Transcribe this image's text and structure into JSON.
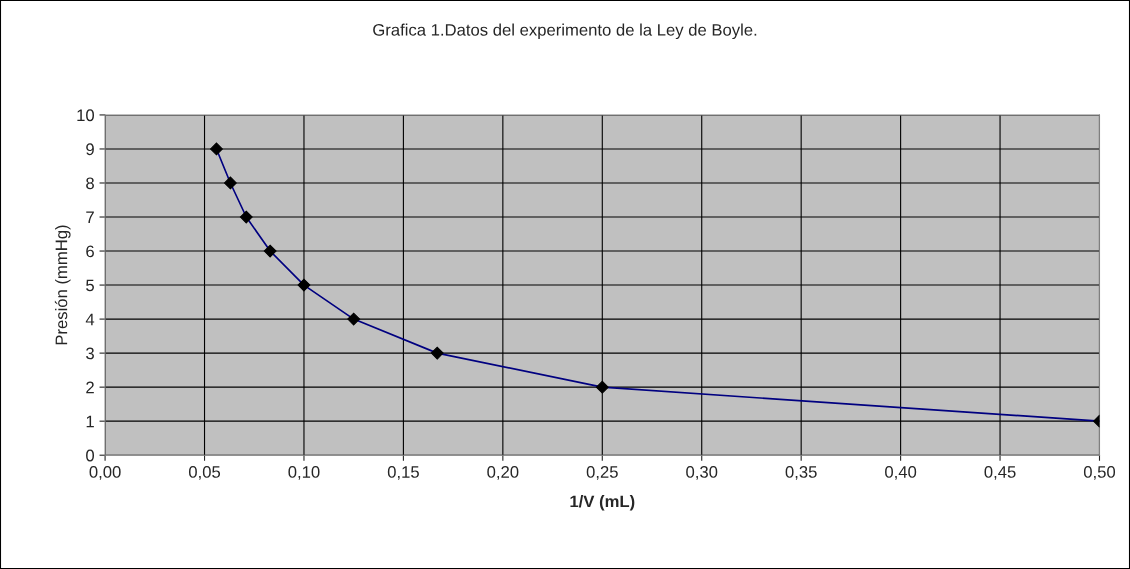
{
  "chart_data": {
    "type": "line",
    "title": "Grafica 1.Datos del experimento de la Ley de Boyle.",
    "xlabel": "1/V (mL)",
    "ylabel": "Presión (mmHg)",
    "x": [
      0.056,
      0.063,
      0.071,
      0.083,
      0.1,
      0.125,
      0.167,
      0.25,
      0.5
    ],
    "series": [
      {
        "color": "#000080",
        "values": [
          9,
          8,
          7,
          6,
          5,
          4,
          3,
          2,
          1
        ]
      }
    ],
    "xlim": [
      0,
      0.5
    ],
    "ylim": [
      0,
      10
    ],
    "xticks": [
      {
        "value": 0,
        "label": "0,00"
      },
      {
        "value": 0.05,
        "label": "0,05"
      },
      {
        "value": 0.1,
        "label": "0,10"
      },
      {
        "value": 0.15,
        "label": "0,15"
      },
      {
        "value": 0.2,
        "label": "0,20"
      },
      {
        "value": 0.25,
        "label": "0,25"
      },
      {
        "value": 0.3,
        "label": "0,30"
      },
      {
        "value": 0.35,
        "label": "0,35"
      },
      {
        "value": 0.4,
        "label": "0,40"
      },
      {
        "value": 0.45,
        "label": "0,45"
      },
      {
        "value": 0.5,
        "label": "0,50"
      }
    ],
    "yticks": [
      0,
      1,
      2,
      3,
      4,
      5,
      6,
      7,
      8,
      9,
      10
    ],
    "grid": true,
    "marker": "diamond",
    "line_style": "solid",
    "legend": false
  }
}
